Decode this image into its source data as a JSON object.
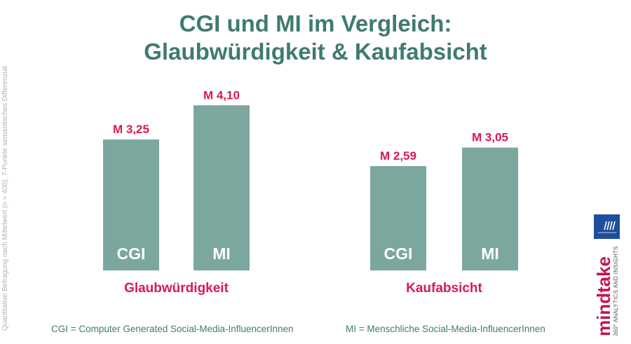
{
  "title_line1": "CGI und MI im Vergleich:",
  "title_line2": "Glaubwürdigkeit & Kaufabsicht",
  "side_note": "Quantitative Befragung nach Mittelwert (n = 400), 7-Punkte semantisches Differenzial",
  "footnote_cgi": "CGI = Computer Generated Social-Media-InfluencerInnen",
  "footnote_mi": "MI = Menschliche Social-Media-InfluencerInnen",
  "brand": {
    "name": "mindtake",
    "tagline": "360° ANALYTICS AND INSIGHTS"
  },
  "colors": {
    "bar": "#7ba79f",
    "label": "#d61a55",
    "title": "#3f7b72",
    "logo": "#1f4e9c",
    "brand": "#c4164f"
  },
  "chart_data": {
    "type": "bar",
    "groups": [
      "Glaubwürdigkeit",
      "Kaufabsicht"
    ],
    "series_labels": [
      "CGI",
      "MI"
    ],
    "values": [
      [
        3.25,
        4.1
      ],
      [
        2.59,
        3.05
      ]
    ],
    "value_labels": [
      [
        "M 3,25",
        "M 4,10"
      ],
      [
        "M 2,59",
        "M 3,05"
      ]
    ],
    "ylim": [
      0,
      7
    ]
  }
}
